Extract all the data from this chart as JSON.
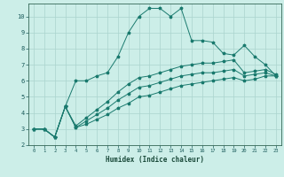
{
  "xlabel": "Humidex (Indice chaleur)",
  "bg_color": "#cceee8",
  "grid_color": "#aad4ce",
  "line_color": "#1a7a6e",
  "xlim": [
    -0.5,
    23.5
  ],
  "ylim": [
    2,
    10.8
  ],
  "xticks": [
    0,
    1,
    2,
    3,
    4,
    5,
    6,
    7,
    8,
    9,
    10,
    11,
    12,
    13,
    14,
    15,
    16,
    17,
    18,
    19,
    20,
    21,
    22,
    23
  ],
  "yticks": [
    2,
    3,
    4,
    5,
    6,
    7,
    8,
    9,
    10
  ],
  "line1_x": [
    0,
    1,
    2,
    3,
    4,
    5,
    6,
    7,
    8,
    9,
    10,
    11,
    12,
    13,
    14,
    15,
    16,
    17,
    18,
    19,
    20,
    21,
    22,
    23
  ],
  "line1_y": [
    3.0,
    3.0,
    2.5,
    4.4,
    6.0,
    6.0,
    6.3,
    6.5,
    7.5,
    9.0,
    10.0,
    10.5,
    10.5,
    10.0,
    10.5,
    8.5,
    8.5,
    8.4,
    7.7,
    7.6,
    8.2,
    7.5,
    7.0,
    6.3
  ],
  "line2_x": [
    0,
    1,
    2,
    3,
    4,
    5,
    6,
    7,
    8,
    9,
    10,
    11,
    12,
    13,
    14,
    15,
    16,
    17,
    18,
    19,
    20,
    21,
    22,
    23
  ],
  "line2_y": [
    3.0,
    3.0,
    2.5,
    4.4,
    3.1,
    3.3,
    3.6,
    3.9,
    4.3,
    4.6,
    5.0,
    5.1,
    5.3,
    5.5,
    5.7,
    5.8,
    5.9,
    6.0,
    6.1,
    6.2,
    6.0,
    6.1,
    6.3,
    6.3
  ],
  "line3_x": [
    0,
    1,
    2,
    3,
    4,
    5,
    6,
    7,
    8,
    9,
    10,
    11,
    12,
    13,
    14,
    15,
    16,
    17,
    18,
    19,
    20,
    21,
    22,
    23
  ],
  "line3_y": [
    3.0,
    3.0,
    2.5,
    4.4,
    3.1,
    3.5,
    3.9,
    4.3,
    4.8,
    5.2,
    5.6,
    5.7,
    5.9,
    6.1,
    6.3,
    6.4,
    6.5,
    6.5,
    6.6,
    6.7,
    6.3,
    6.4,
    6.5,
    6.3
  ],
  "line4_x": [
    0,
    1,
    2,
    3,
    4,
    5,
    6,
    7,
    8,
    9,
    10,
    11,
    12,
    13,
    14,
    15,
    16,
    17,
    18,
    19,
    20,
    21,
    22,
    23
  ],
  "line4_y": [
    3.0,
    3.0,
    2.5,
    4.4,
    3.2,
    3.7,
    4.2,
    4.7,
    5.3,
    5.8,
    6.2,
    6.3,
    6.5,
    6.7,
    6.9,
    7.0,
    7.1,
    7.1,
    7.2,
    7.3,
    6.5,
    6.6,
    6.7,
    6.4
  ]
}
